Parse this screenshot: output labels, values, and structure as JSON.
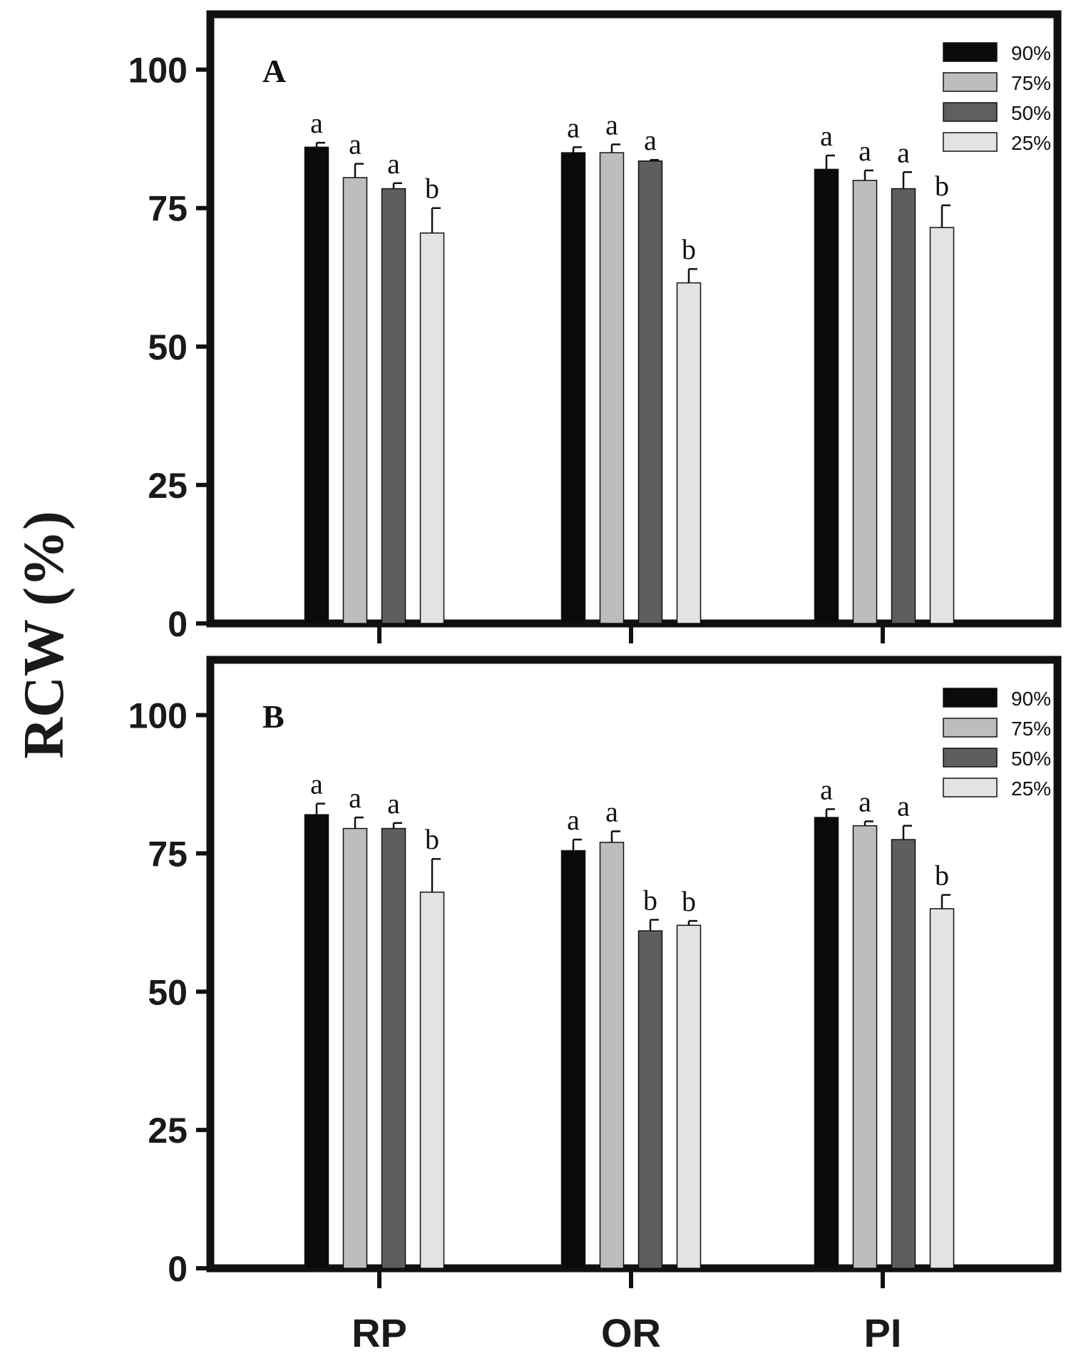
{
  "chart_data": [
    {
      "type": "bar",
      "panel_label": "A",
      "categories": [
        "RP",
        "OR",
        "PI"
      ],
      "series": [
        {
          "name": "90%",
          "color": "#0a0a0a",
          "values": [
            86,
            85,
            82
          ],
          "errors": [
            0.8,
            1.0,
            2.5
          ],
          "letters": [
            "a",
            "a",
            "a"
          ]
        },
        {
          "name": "75%",
          "color": "#bdbdbd",
          "values": [
            80.5,
            85,
            80
          ],
          "errors": [
            2.5,
            1.5,
            1.8
          ],
          "letters": [
            "a",
            "a",
            "a"
          ]
        },
        {
          "name": "50%",
          "color": "#5e5e5e",
          "values": [
            78.5,
            83.5,
            78.5
          ],
          "errors": [
            1.0,
            0.2,
            3.0
          ],
          "letters": [
            "a",
            "a",
            "a"
          ]
        },
        {
          "name": "25%",
          "color": "#e3e3e3",
          "values": [
            70.5,
            61.5,
            71.5
          ],
          "errors": [
            4.5,
            2.5,
            4.0
          ],
          "letters": [
            "b",
            "b",
            "b"
          ]
        }
      ],
      "y_ticks": [
        "0",
        "25",
        "50",
        "75",
        "100"
      ],
      "ylim": [
        0,
        110
      ],
      "legend": [
        "90%",
        "75%",
        "50%",
        "25%"
      ],
      "legend_position": "top-right",
      "show_category_labels": false
    },
    {
      "type": "bar",
      "panel_label": "B",
      "categories": [
        "RP",
        "OR",
        "PI"
      ],
      "series": [
        {
          "name": "90%",
          "color": "#0a0a0a",
          "values": [
            82,
            75.5,
            81.5
          ],
          "errors": [
            2.0,
            2.0,
            1.5
          ],
          "letters": [
            "a",
            "a",
            "a"
          ]
        },
        {
          "name": "75%",
          "color": "#bdbdbd",
          "values": [
            79.5,
            77,
            80
          ],
          "errors": [
            2.0,
            2.0,
            0.8
          ],
          "letters": [
            "a",
            "a",
            "a"
          ]
        },
        {
          "name": "50%",
          "color": "#5e5e5e",
          "values": [
            79.5,
            61,
            77.5
          ],
          "errors": [
            1.0,
            2.0,
            2.5
          ],
          "letters": [
            "a",
            "b",
            "a"
          ]
        },
        {
          "name": "25%",
          "color": "#e3e3e3",
          "values": [
            68,
            62,
            65
          ],
          "errors": [
            6.0,
            0.8,
            2.5
          ],
          "letters": [
            "b",
            "b",
            "b"
          ]
        }
      ],
      "y_ticks": [
        "0",
        "25",
        "50",
        "75",
        "100"
      ],
      "ylim": [
        0,
        110
      ],
      "legend": [
        "90%",
        "75%",
        "50%",
        "25%"
      ],
      "legend_position": "top-right",
      "show_category_labels": true
    }
  ],
  "ylabel": "RCW (%)"
}
